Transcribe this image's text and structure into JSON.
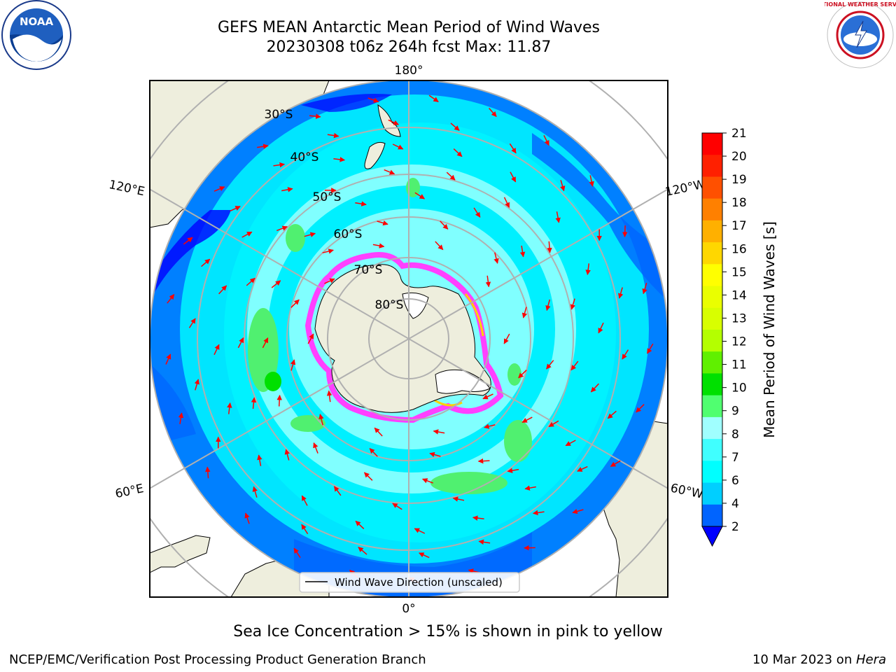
{
  "title": {
    "line1": "GEFS MEAN Antarctic Mean Period of Wind Waves",
    "line2": "20230308 t06z 264h fcst   Max: 11.87"
  },
  "logos": {
    "left_icon": "noaa-logo",
    "left_text": "NOAA",
    "right_icon": "nws-logo",
    "right_text": "NATIONAL WEATHER SERVICE"
  },
  "map": {
    "projection": "south-polar-stereographic",
    "longitude_labels": {
      "top": "180°",
      "bottom": "0°",
      "left_upper": "120°E",
      "left_lower": "60°E",
      "right_upper": "120°W",
      "right_lower": "60°W"
    },
    "latitude_labels": [
      "30°S",
      "40°S",
      "50°S",
      "60°S",
      "70°S",
      "80°S"
    ],
    "legend_label": "Wind Wave Direction (unscaled)",
    "colors": {
      "land": "#eeeedd",
      "ocean_low": "#0080ff",
      "ocean_mid": "#00e5ff",
      "ocean_light": "#80ffff",
      "ocean_green": "#50f070",
      "ice_pink": "#ff40ff",
      "ice_yellow": "#ffd000",
      "arrow": "#ff0000",
      "grid": "#b0b0b0"
    }
  },
  "colorbar": {
    "label": "Mean Period of Wind Waves [s]",
    "ticks": [
      "2",
      "4",
      "6",
      "7",
      "8",
      "9",
      "10",
      "11",
      "12",
      "13",
      "14",
      "15",
      "16",
      "17",
      "18",
      "19",
      "20",
      "21"
    ],
    "colors": [
      "#0064ff",
      "#00cfff",
      "#00ffff",
      "#40ffff",
      "#a0ffff",
      "#50ff70",
      "#00e000",
      "#60f000",
      "#b4ff00",
      "#d8ff00",
      "#eaff00",
      "#ffff00",
      "#ffd700",
      "#ffb000",
      "#ff8000",
      "#ff5000",
      "#ff2000",
      "#ff0000"
    ],
    "under_color": "#0000ff"
  },
  "caption": "Sea Ice Concentration > 15% is shown in pink to yellow",
  "footer": {
    "left": "NCEP/EMC/Verification Post Processing Product Generation Branch",
    "right_prefix": "10 Mar 2023 on ",
    "right_italic": "Hera"
  }
}
